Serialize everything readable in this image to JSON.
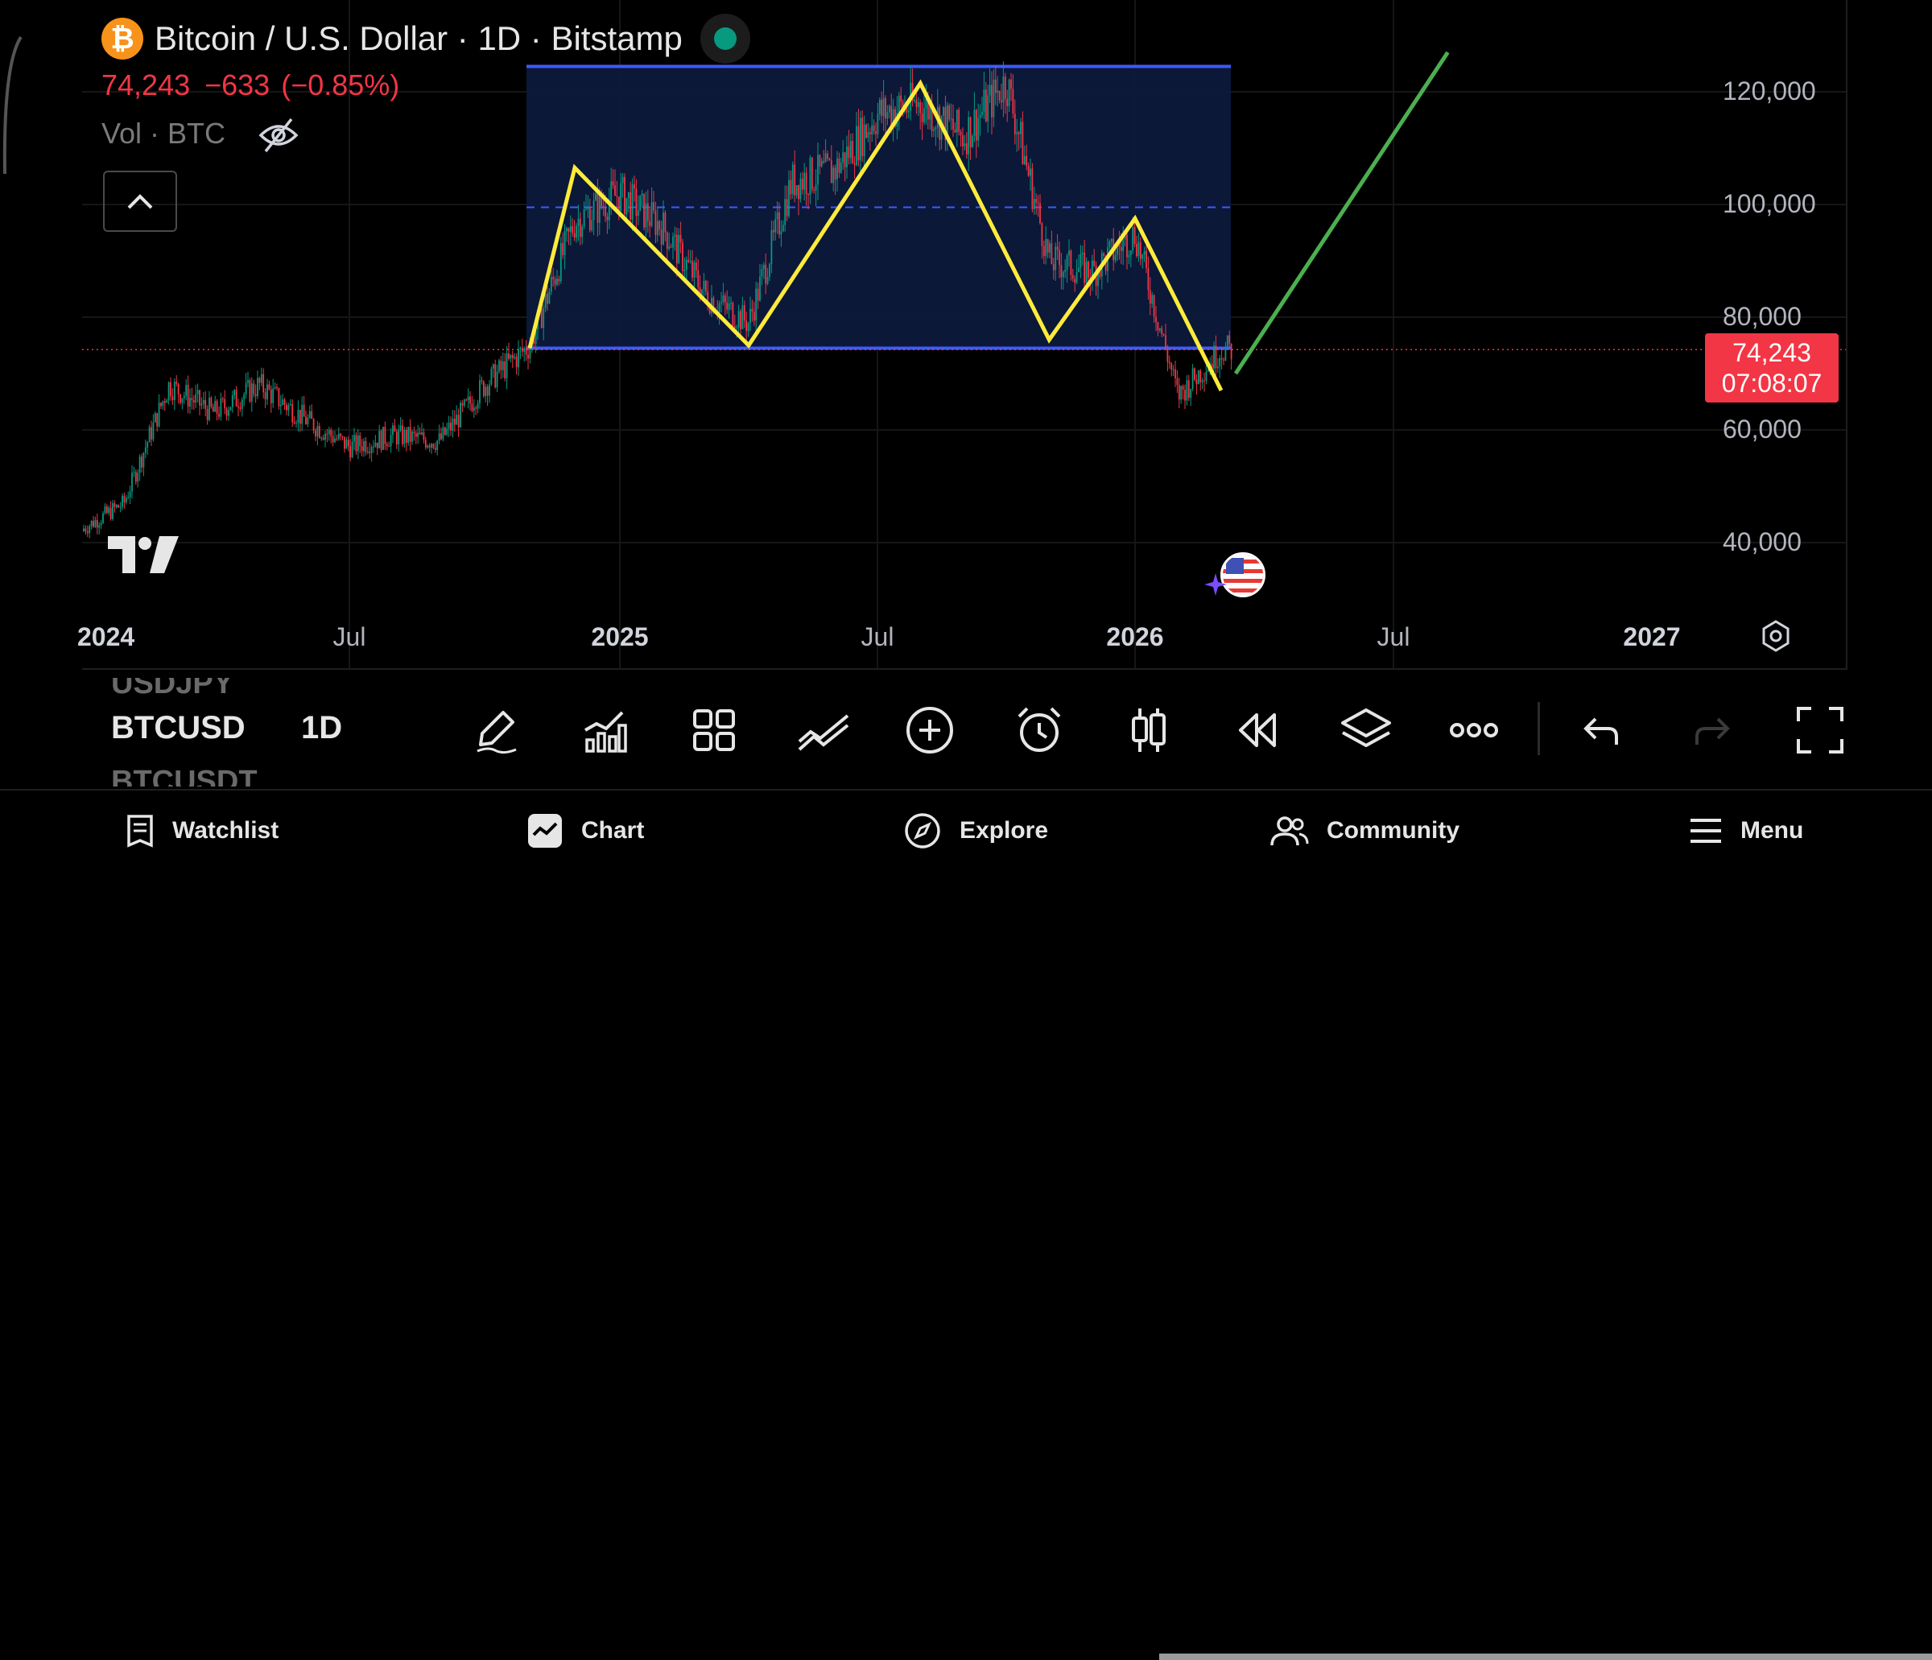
{
  "header": {
    "title": "Bitcoin / U.S. Dollar · 1D · Bitstamp",
    "price": "74,243",
    "change": "−633",
    "change_pct": "(−0.85%)",
    "volume_label": "Vol · BTC"
  },
  "price_axis": {
    "labels": [
      "120,000",
      "100,000",
      "80,000",
      "60,000",
      "40,000"
    ],
    "current_price": "74,243",
    "countdown": "07:08:07"
  },
  "time_axis": {
    "labels": [
      "2024",
      "Jul",
      "2025",
      "Jul",
      "2026",
      "Jul",
      "2027"
    ]
  },
  "toolbar": {
    "symbol_prev": "USDJPY",
    "symbol": "BTCUSD",
    "symbol_next": "BTCUSDT",
    "interval": "1D",
    "tools": [
      "pencil-icon",
      "indicators-icon",
      "layout-grid-icon",
      "drawing-tools-icon",
      "add-icon",
      "alarm-icon",
      "candles-icon",
      "replay-icon",
      "layers-icon",
      "more-icon",
      "undo-icon",
      "redo-icon",
      "fullscreen-icon"
    ]
  },
  "nav": {
    "watchlist": "Watchlist",
    "chart": "Chart",
    "explore": "Explore",
    "community": "Community",
    "menu": "Menu"
  },
  "colors": {
    "up": "#089981",
    "down": "#f23645",
    "range_box": "#0c1a3d",
    "range_border": "#3d5afe",
    "pattern": "#ffeb3b",
    "projection": "#4caf50"
  },
  "chart_data": {
    "type": "candlestick",
    "symbol": "BTCUSD",
    "interval": "1D",
    "ylim": [
      30000,
      130000
    ],
    "x_range": [
      "2024-01",
      "2027-01"
    ],
    "last_price": 74243,
    "range_box": {
      "top": 124500,
      "bottom": 74500,
      "midline": 99500
    },
    "zigzag_points": [
      {
        "date": "2024-11",
        "price": 74500
      },
      {
        "date": "2024-12",
        "price": 106500
      },
      {
        "date": "2025-04",
        "price": 75000
      },
      {
        "date": "2025-08",
        "price": 121500
      },
      {
        "date": "2025-11",
        "price": 76000
      },
      {
        "date": "2026-01",
        "price": 97500
      },
      {
        "date": "2026-03",
        "price": 67000
      }
    ],
    "projection": [
      {
        "date": "2026-03",
        "price": 70000
      },
      {
        "date": "2026-08",
        "price": 127000
      }
    ],
    "price_path": [
      {
        "date": "2024-01",
        "price": 42000
      },
      {
        "date": "2024-02",
        "price": 47000
      },
      {
        "date": "2024-03",
        "price": 68000
      },
      {
        "date": "2024-04",
        "price": 63000
      },
      {
        "date": "2024-05",
        "price": 68000
      },
      {
        "date": "2024-06",
        "price": 62000
      },
      {
        "date": "2024-07",
        "price": 57000
      },
      {
        "date": "2024-08",
        "price": 59000
      },
      {
        "date": "2024-09",
        "price": 58000
      },
      {
        "date": "2024-10",
        "price": 68000
      },
      {
        "date": "2024-11",
        "price": 75000
      },
      {
        "date": "2024-12",
        "price": 97000
      },
      {
        "date": "2025-01",
        "price": 102000
      },
      {
        "date": "2025-02",
        "price": 96000
      },
      {
        "date": "2025-03",
        "price": 84000
      },
      {
        "date": "2025-04",
        "price": 79000
      },
      {
        "date": "2025-05",
        "price": 104000
      },
      {
        "date": "2025-06",
        "price": 106000
      },
      {
        "date": "2025-07",
        "price": 116000
      },
      {
        "date": "2025-08",
        "price": 118000
      },
      {
        "date": "2025-09",
        "price": 112000
      },
      {
        "date": "2025-10",
        "price": 122000
      },
      {
        "date": "2025-11",
        "price": 90000
      },
      {
        "date": "2025-12",
        "price": 88000
      },
      {
        "date": "2026-01",
        "price": 95000
      },
      {
        "date": "2026-02",
        "price": 66000
      },
      {
        "date": "2026-03",
        "price": 74243
      }
    ]
  }
}
